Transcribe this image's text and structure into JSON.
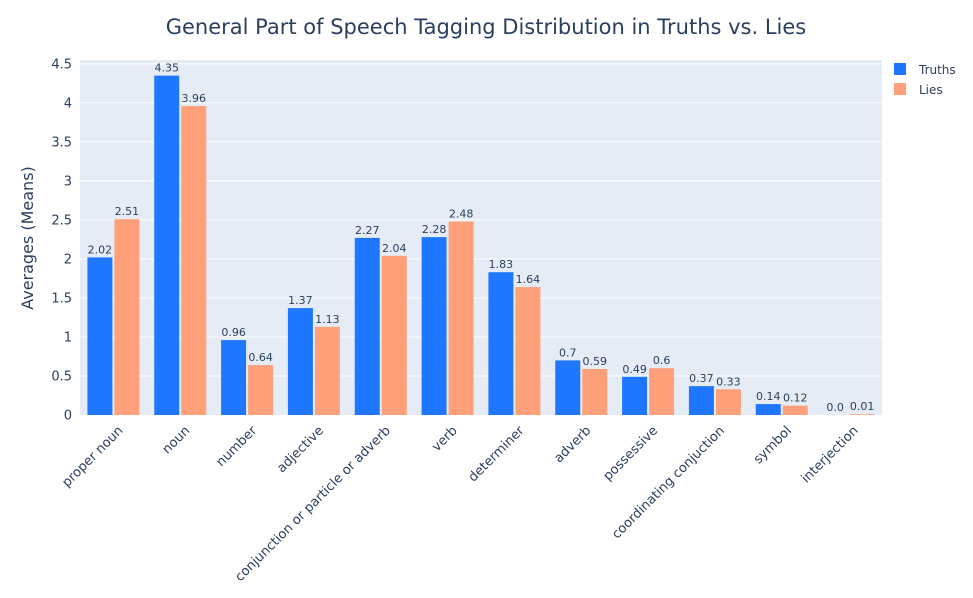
{
  "chart_data": {
    "type": "bar",
    "title": "General Part of Speech Tagging Distribution in Truths vs. Lies",
    "xlabel": "",
    "ylabel": "Averages (Means)",
    "ylim": [
      0,
      4.55
    ],
    "yticks": [
      0,
      0.5,
      1,
      1.5,
      2,
      2.5,
      3,
      3.5,
      4,
      4.5
    ],
    "ytick_labels": [
      "0",
      "0.5",
      "1",
      "1.5",
      "2",
      "2.5",
      "3",
      "3.5",
      "4",
      "4.5"
    ],
    "grid": true,
    "legend_position": "top-right",
    "categories": [
      "proper noun",
      "noun",
      "number",
      "adjective",
      "conjunction or particle or adverb",
      "verb",
      "determiner",
      "adverb",
      "possessive",
      "coordinating conjuction",
      "symbol",
      "interjection"
    ],
    "series": [
      {
        "name": "Truths",
        "color": "#1f77ff",
        "values": [
          2.02,
          4.35,
          0.96,
          1.37,
          2.27,
          2.28,
          1.83,
          0.7,
          0.49,
          0.37,
          0.14,
          0.0
        ],
        "labels": [
          "2.02",
          "4.35",
          "0.96",
          "1.37",
          "2.27",
          "2.28",
          "1.83",
          "0.7",
          "0.49",
          "0.37",
          "0.14",
          "0.0"
        ]
      },
      {
        "name": "Lies",
        "color": "#ffa07a",
        "values": [
          2.51,
          3.96,
          0.64,
          1.13,
          2.04,
          2.48,
          1.64,
          0.59,
          0.6,
          0.33,
          0.12,
          0.01
        ],
        "labels": [
          "2.51",
          "3.96",
          "0.64",
          "1.13",
          "2.04",
          "2.48",
          "1.64",
          "0.59",
          "0.6",
          "0.33",
          "0.12",
          "0.01"
        ]
      }
    ]
  }
}
